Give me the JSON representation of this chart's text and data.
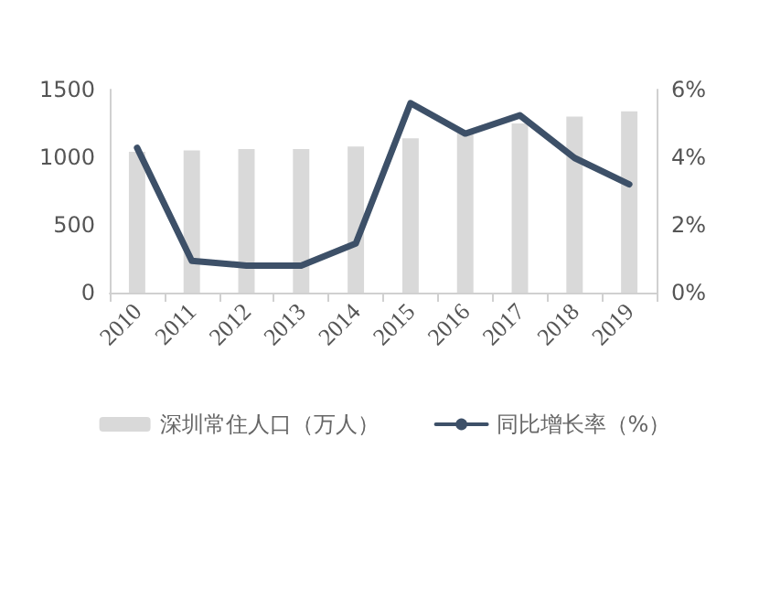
{
  "chart_data": {
    "type": "bar",
    "categories": [
      "2010",
      "2011",
      "2012",
      "2013",
      "2014",
      "2015",
      "2016",
      "2017",
      "2018",
      "2019"
    ],
    "series": [
      {
        "name": "深圳常住人口（万人）",
        "color": "#d9d9d9",
        "values": [
          1040,
          1050,
          1060,
          1060,
          1080,
          1140,
          1190,
          1250,
          1300,
          1340
        ]
      },
      {
        "name": "同比增长率（%）",
        "type": "line",
        "axis": "y2",
        "color": "#3d5068",
        "values": [
          4.28,
          0.94,
          0.8,
          0.8,
          1.45,
          5.6,
          4.7,
          5.24,
          3.98,
          3.2
        ]
      }
    ],
    "ylim": [
      0,
      1500
    ],
    "yticks": [
      0,
      500,
      1000,
      1500
    ],
    "y2lim": [
      0,
      6
    ],
    "y2ticks": [
      {
        "value": 0,
        "label": "0%"
      },
      {
        "value": 2,
        "label": "2%"
      },
      {
        "value": 4,
        "label": "4%"
      },
      {
        "value": 6,
        "label": "6%"
      }
    ],
    "grid": false,
    "legend": "bottom",
    "marker": "none",
    "line_style": "solid"
  }
}
